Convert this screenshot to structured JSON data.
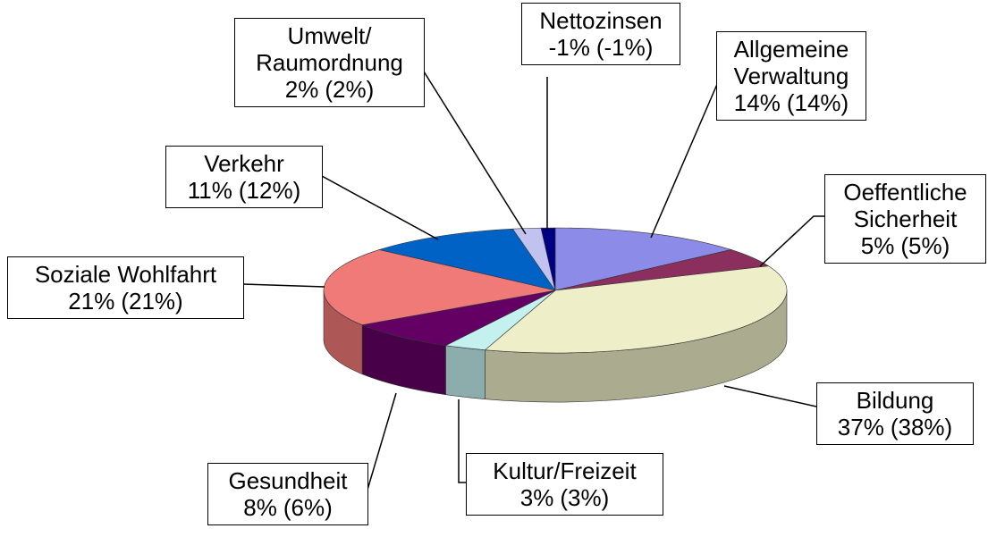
{
  "chart_data": {
    "type": "pie3d",
    "categories": [
      "Allgemeine\nVerwaltung",
      "Oeffentliche\nSicherheit",
      "Bildung",
      "Kultur/Freizeit",
      "Gesundheit",
      "Soziale Wohlfahrt",
      "Verkehr",
      "Umwelt/\nRaumordnung",
      "Nettozinsen"
    ],
    "colors": [
      "#8c8ce8",
      "#8a2f5e",
      "#eeeec8",
      "#c4f0f0",
      "#640064",
      "#f07a78",
      "#0062c4",
      "#c2c2f0",
      "#000082"
    ],
    "series": [
      {
        "values": [
          14,
          5,
          37,
          3,
          8,
          21,
          11,
          2,
          -1
        ],
        "value_labels": [
          "14%",
          "5%",
          "37%",
          "3%",
          "8%",
          "21%",
          "11%",
          "2%",
          "-1%"
        ]
      },
      {
        "values": [
          14,
          5,
          38,
          3,
          6,
          21,
          12,
          2,
          -1
        ],
        "value_labels": [
          "(14%)",
          "(5%)",
          "(38%)",
          "(3%)",
          "(6%)",
          "(21%)",
          "(12%)",
          "(2%)",
          "(-1%)"
        ]
      }
    ]
  }
}
